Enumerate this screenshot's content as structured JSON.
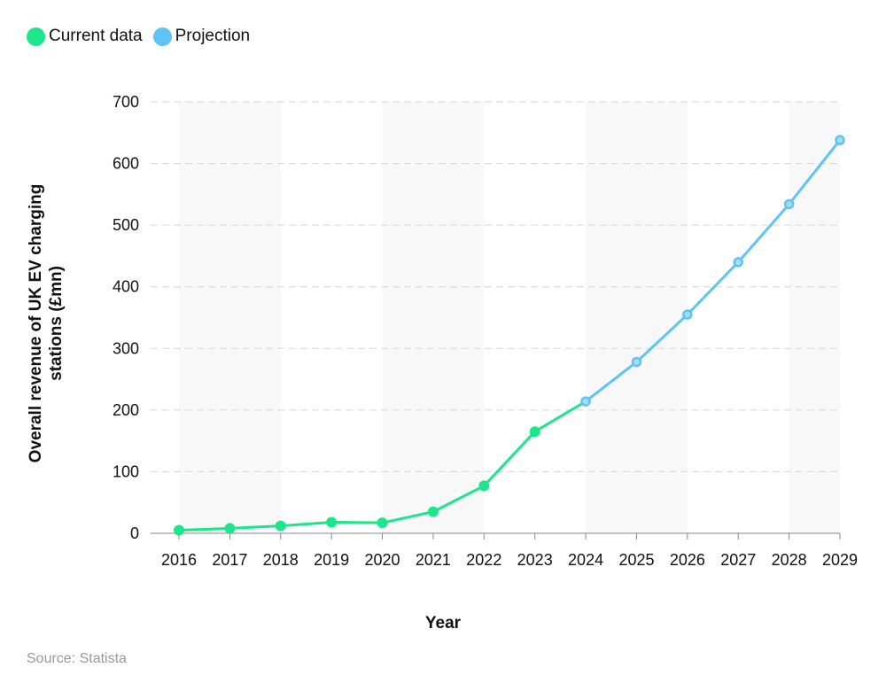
{
  "chart_data": {
    "type": "line",
    "xlabel": "Year",
    "ylabel": "Overall revenue of UK EV charging stations (£mn)",
    "ylabel_lines": [
      "Overall revenue of UK EV charging",
      "stations (£mn)"
    ],
    "ylim": [
      0,
      700
    ],
    "yticks": [
      0,
      100,
      200,
      300,
      400,
      500,
      600,
      700
    ],
    "categories": [
      "2016",
      "2017",
      "2018",
      "2019",
      "2020",
      "2021",
      "2022",
      "2023",
      "2024",
      "2025",
      "2026",
      "2027",
      "2028",
      "2029"
    ],
    "grid": "horizontal dashed",
    "legend_position": "top-left",
    "series": [
      {
        "name": "Current data",
        "color": "#1de58a",
        "x": [
          "2016",
          "2017",
          "2018",
          "2019",
          "2020",
          "2021",
          "2022",
          "2023",
          "2024"
        ],
        "values": [
          5,
          8,
          12,
          18,
          17,
          35,
          77,
          165,
          214
        ]
      },
      {
        "name": "Projection",
        "color": "#5ec4f4",
        "x": [
          "2024",
          "2025",
          "2026",
          "2027",
          "2028",
          "2029"
        ],
        "values": [
          214,
          278,
          355,
          440,
          534,
          638
        ]
      }
    ]
  },
  "source": "Source: Statista"
}
